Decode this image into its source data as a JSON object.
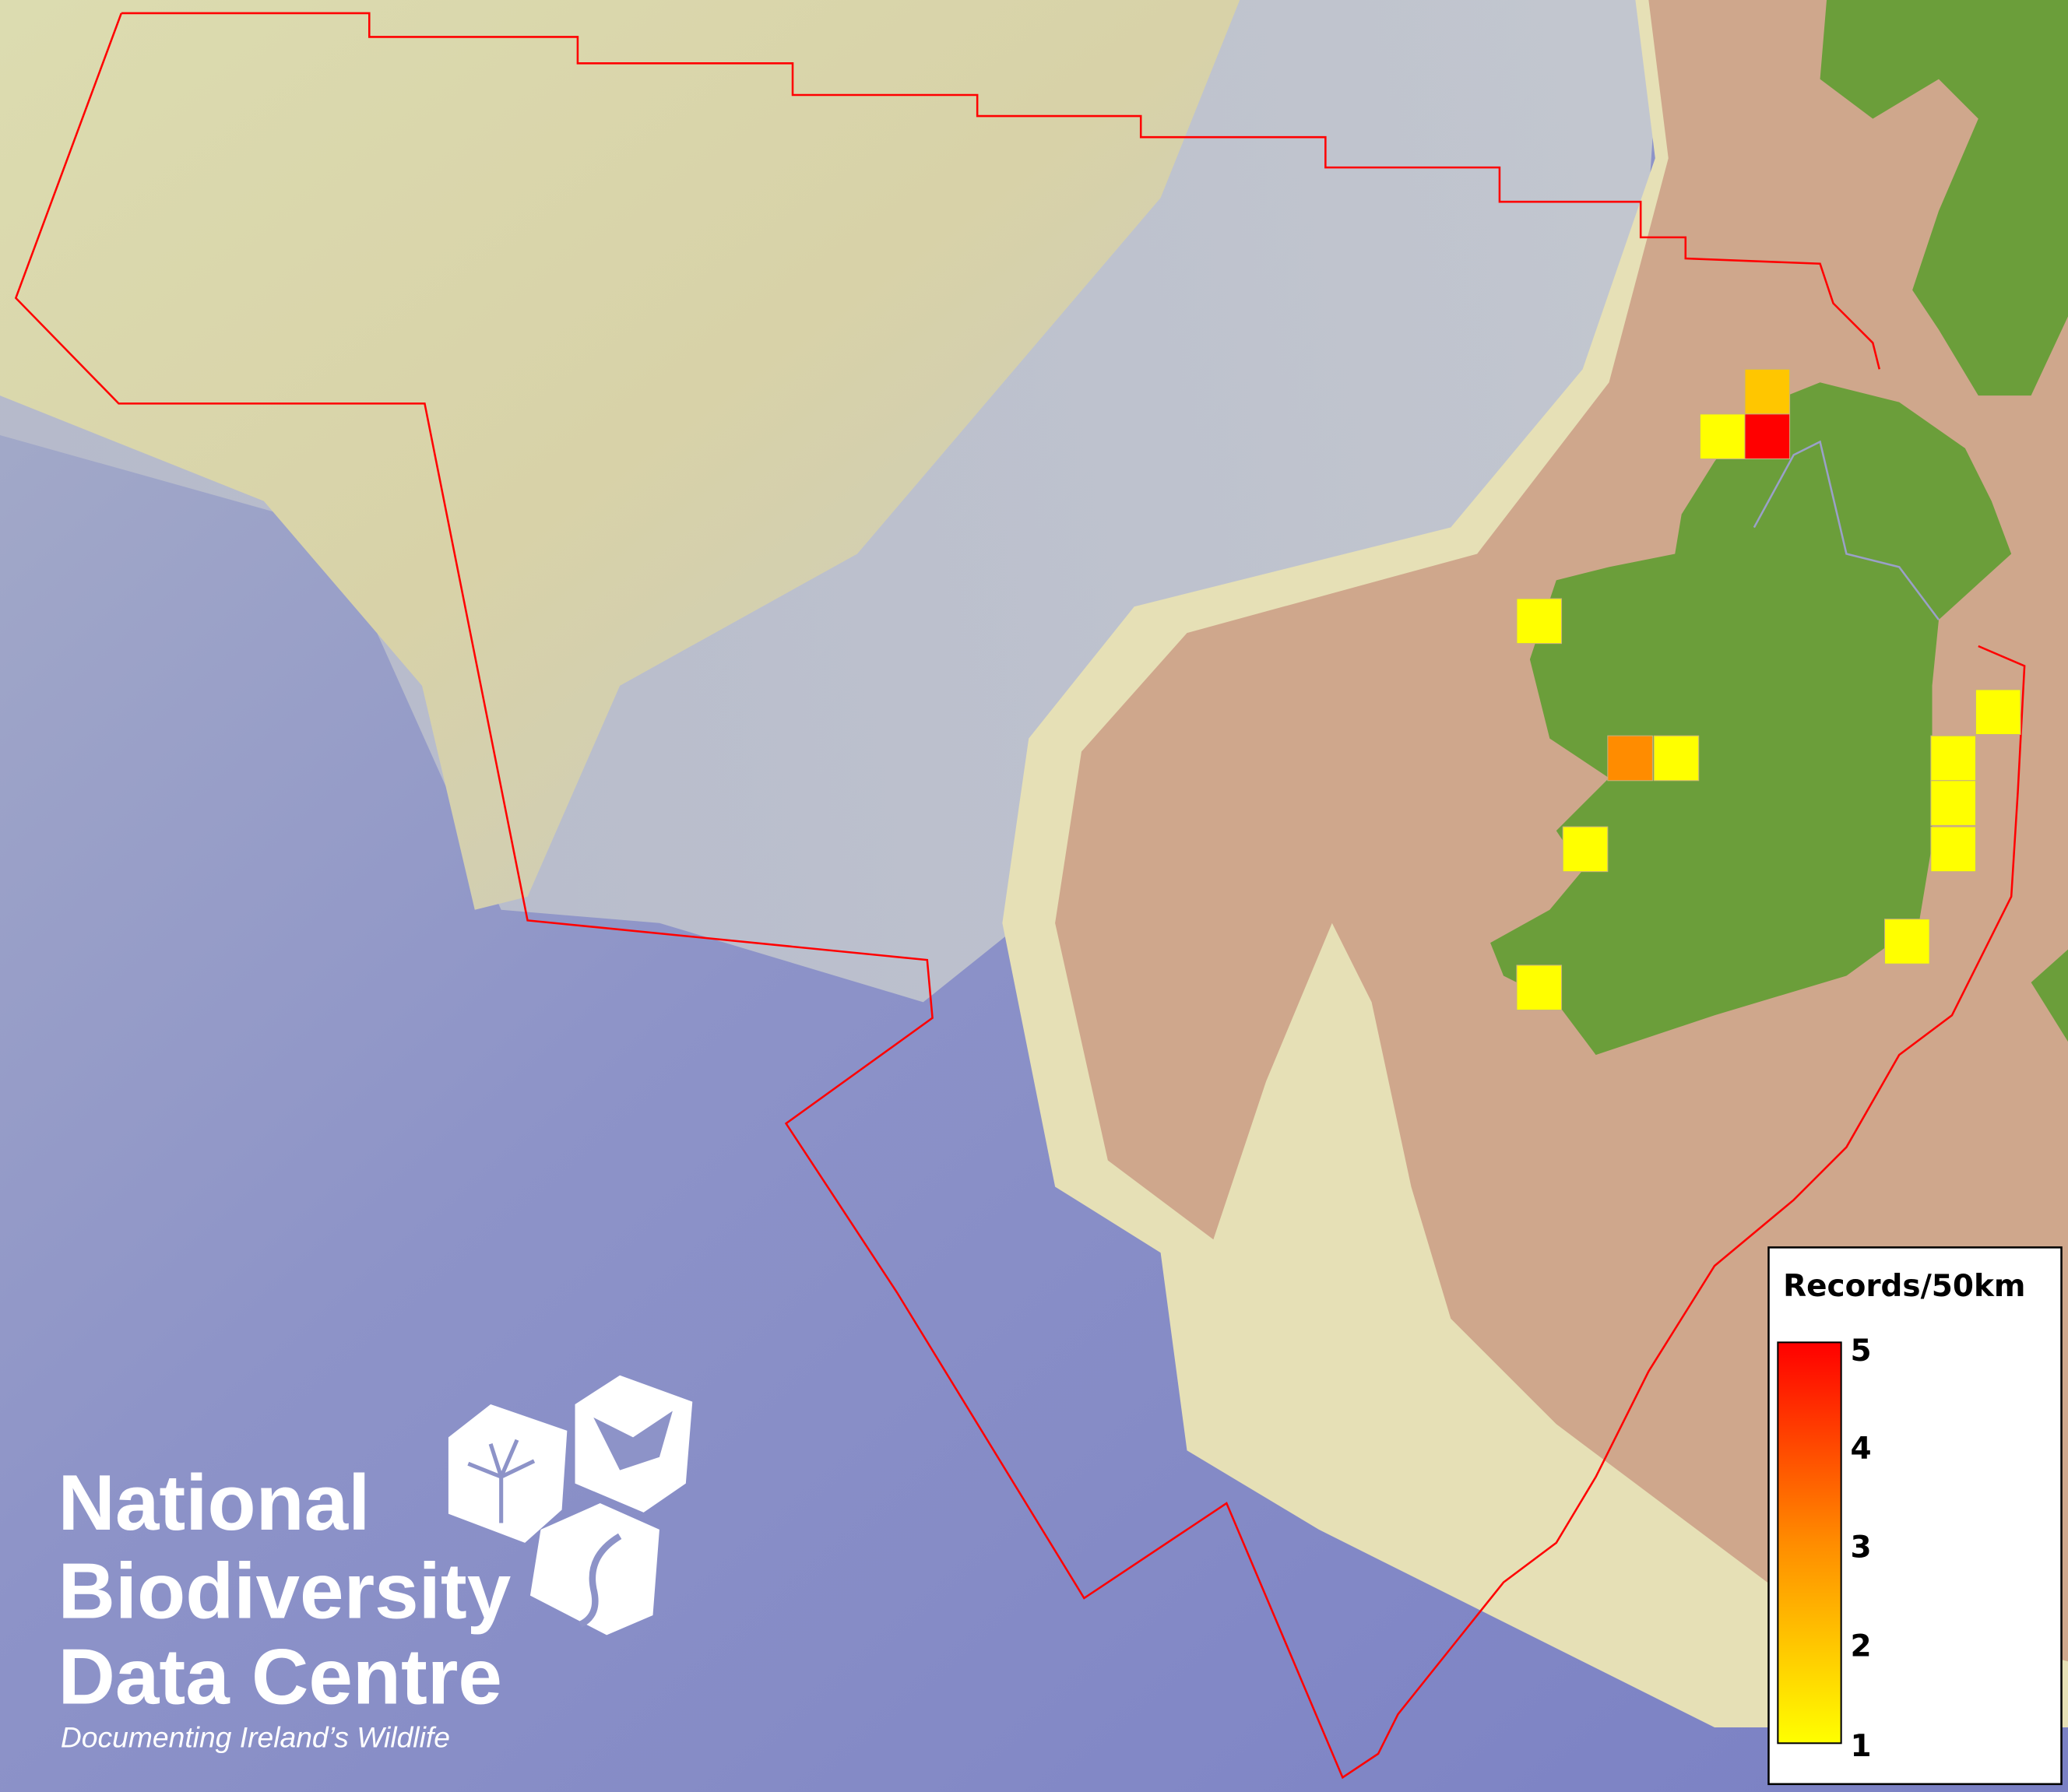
{
  "legend": {
    "title": "Records/50km",
    "ticks": [
      "5",
      "4",
      "3",
      "2",
      "1"
    ],
    "min": 1,
    "max": 5,
    "color_low": "#FFFF00",
    "color_mid": "#FF8C00",
    "color_high": "#FF0000"
  },
  "logo": {
    "line1": "National",
    "line2": "Biodiversity",
    "line3": "Data Centre",
    "tagline": "Documenting Ireland’s Wildlife",
    "icons": [
      "tree-icon",
      "butterfly-icon",
      "seahorse-icon"
    ]
  },
  "records": [
    2,
    1,
    5,
    1,
    3,
    1,
    1,
    1,
    1,
    1,
    1,
    1,
    1
  ],
  "colors": {
    "boundary": "#FF0000",
    "ocean_deep": "#7B82C6",
    "shelf": "#D9D4A8",
    "shallow": "#CFA78C",
    "land": "#6B9E3A"
  }
}
